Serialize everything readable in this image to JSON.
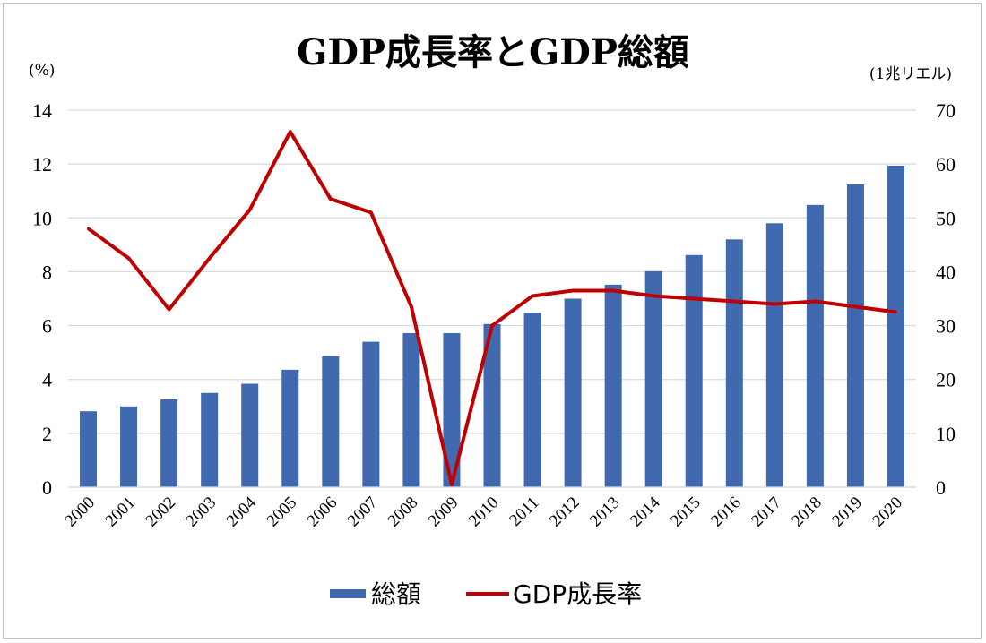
{
  "chart_data": {
    "type": "bar+line",
    "title": "GDP成長率とGDP総額",
    "left_unit": "(%)",
    "right_unit": "(1兆リエル)",
    "categories": [
      "2000",
      "2001",
      "2002",
      "2003",
      "2004",
      "2005",
      "2006",
      "2007",
      "2008",
      "2009",
      "2010",
      "2011",
      "2012",
      "2013",
      "2014",
      "2015",
      "2016",
      "2017",
      "2018",
      "2019",
      "2020"
    ],
    "series": [
      {
        "name": "総額",
        "type": "bar",
        "axis": "right",
        "color": "#4169B0",
        "values": [
          14.1,
          15.0,
          16.3,
          17.5,
          19.2,
          21.8,
          24.3,
          27.0,
          28.6,
          28.6,
          30.3,
          32.4,
          35.0,
          37.6,
          40.1,
          43.1,
          46.0,
          49.0,
          52.4,
          56.2,
          59.7
        ]
      },
      {
        "name": "GDP成長率",
        "type": "line",
        "axis": "left",
        "color": "#C00000",
        "values": [
          9.6,
          8.5,
          6.6,
          8.5,
          10.3,
          13.2,
          10.7,
          10.2,
          6.7,
          0.1,
          6.0,
          7.1,
          7.3,
          7.3,
          7.1,
          7.0,
          6.9,
          6.8,
          6.9,
          6.7,
          6.5
        ]
      }
    ],
    "y_left": {
      "min": 0,
      "max": 14,
      "ticks": [
        0,
        2,
        4,
        6,
        8,
        10,
        12,
        14
      ]
    },
    "y_right": {
      "min": 0,
      "max": 70,
      "ticks": [
        0,
        10,
        20,
        30,
        40,
        50,
        60,
        70
      ]
    },
    "grid": true,
    "legend_position": "bottom"
  }
}
